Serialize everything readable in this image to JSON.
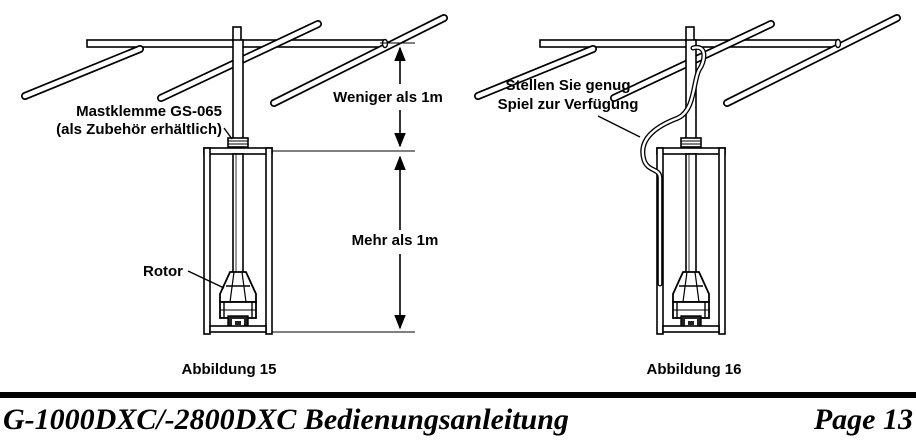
{
  "figure15": {
    "caption": "Abbildung 15",
    "clamp_label_line1_bold": "Mast",
    "clamp_label_line1_rest": "klemme GS-065",
    "clamp_label_line2": "(als Zubehör erhältlich)",
    "dim_upper": "Weniger als 1m",
    "dim_lower": "Mehr als 1m",
    "rotor_label": "Rotor"
  },
  "figure16": {
    "caption": "Abbildung 16",
    "cable_note_line1": "Stellen Sie genug",
    "cable_note_line2": "Spiel zur Verfügung"
  },
  "footer": {
    "title": "G-1000DXC/-2800DXC Bedienungsanleitung",
    "page": "Page 13"
  }
}
